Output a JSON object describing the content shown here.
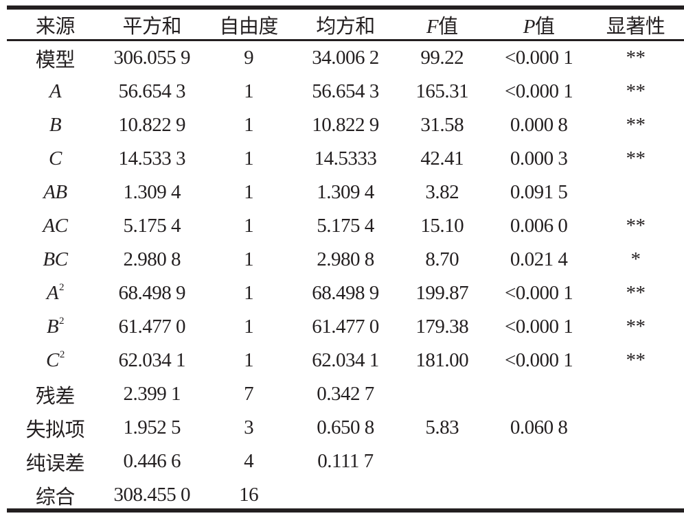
{
  "headers": [
    {
      "text": "来源"
    },
    {
      "text": "平方和"
    },
    {
      "text": "自由度"
    },
    {
      "text": "均方和"
    },
    {
      "italic": "F",
      "text": "值"
    },
    {
      "italic": "P",
      "text": "值"
    },
    {
      "text": "显著性"
    }
  ],
  "rows": [
    {
      "source": "模型",
      "source_italic": false,
      "sup": "",
      "ss": "306.055 9",
      "df": "9",
      "ms": "34.006 2",
      "f": "99.22",
      "p": "<0.000 1",
      "sig": "**"
    },
    {
      "source": "A",
      "source_italic": true,
      "sup": "",
      "ss": "56.654 3",
      "df": "1",
      "ms": "56.654 3",
      "f": "165.31",
      "p": "<0.000 1",
      "sig": "**"
    },
    {
      "source": "B",
      "source_italic": true,
      "sup": "",
      "ss": "10.822 9",
      "df": "1",
      "ms": "10.822 9",
      "f": "31.58",
      "p": "0.000 8",
      "sig": "**"
    },
    {
      "source": "C",
      "source_italic": true,
      "sup": "",
      "ss": "14.533 3",
      "df": "1",
      "ms": "14.5333",
      "f": "42.41",
      "p": "0.000 3",
      "sig": "**"
    },
    {
      "source": "AB",
      "source_italic": true,
      "sup": "",
      "ss": "1.309 4",
      "df": "1",
      "ms": "1.309 4",
      "f": "3.82",
      "p": "0.091 5",
      "sig": ""
    },
    {
      "source": "AC",
      "source_italic": true,
      "sup": "",
      "ss": "5.175 4",
      "df": "1",
      "ms": "5.175 4",
      "f": "15.10",
      "p": "0.006 0",
      "sig": "**"
    },
    {
      "source": "BC",
      "source_italic": true,
      "sup": "",
      "ss": "2.980 8",
      "df": "1",
      "ms": "2.980 8",
      "f": "8.70",
      "p": "0.021 4",
      "sig": "*"
    },
    {
      "source": "A",
      "source_italic": true,
      "sup": "2",
      "ss": "68.498 9",
      "df": "1",
      "ms": "68.498 9",
      "f": "199.87",
      "p": "<0.000 1",
      "sig": "**"
    },
    {
      "source": "B",
      "source_italic": true,
      "sup": "2",
      "ss": "61.477 0",
      "df": "1",
      "ms": "61.477 0",
      "f": "179.38",
      "p": "<0.000 1",
      "sig": "**"
    },
    {
      "source": "C",
      "source_italic": true,
      "sup": "2",
      "ss": "62.034 1",
      "df": "1",
      "ms": "62.034 1",
      "f": "181.00",
      "p": "<0.000 1",
      "sig": "**"
    },
    {
      "source": "残差",
      "source_italic": false,
      "sup": "",
      "ss": "2.399 1",
      "df": "7",
      "ms": "0.342 7",
      "f": "",
      "p": "",
      "sig": ""
    },
    {
      "source": "失拟项",
      "source_italic": false,
      "sup": "",
      "ss": "1.952 5",
      "df": "3",
      "ms": "0.650 8",
      "f": "5.83",
      "p": "0.060 8",
      "sig": ""
    },
    {
      "source": "纯误差",
      "source_italic": false,
      "sup": "",
      "ss": "0.446 6",
      "df": "4",
      "ms": "0.111 7",
      "f": "",
      "p": "",
      "sig": ""
    },
    {
      "source": "综合",
      "source_italic": false,
      "sup": "",
      "ss": "308.455 0",
      "df": "16",
      "ms": "",
      "f": "",
      "p": "",
      "sig": ""
    }
  ]
}
